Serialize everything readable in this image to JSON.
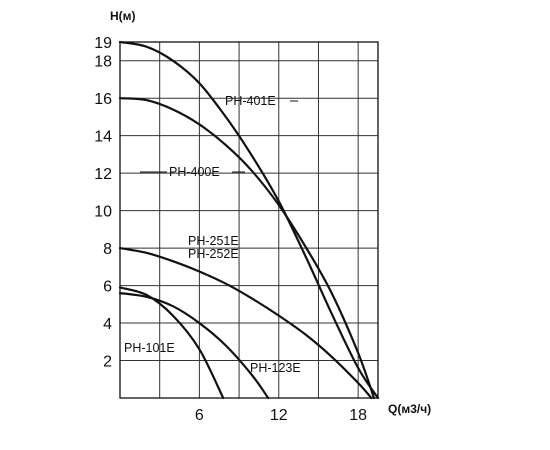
{
  "chart_data": {
    "type": "line",
    "title": "",
    "xlabel": "Q(м3/ч)",
    "ylabel": "H(м)",
    "xlim": [
      0,
      19.5
    ],
    "ylim": [
      0,
      19
    ],
    "x_ticks": [
      6,
      12,
      18
    ],
    "y_ticks": [
      2,
      4,
      6,
      8,
      10,
      12,
      14,
      16,
      18,
      19
    ],
    "grid": true,
    "legend": "none",
    "series": [
      {
        "name": "PH-401E",
        "x": [
          0,
          2,
          4,
          6,
          8,
          10,
          12,
          14,
          16,
          18,
          19.5
        ],
        "y": [
          19,
          18.75,
          18.0,
          16.8,
          15.0,
          12.9,
          10.5,
          7.6,
          4.5,
          1.6,
          0
        ]
      },
      {
        "name": "PH-400E",
        "x": [
          0,
          2,
          4,
          6,
          8,
          10,
          12,
          14,
          16,
          18,
          19.2
        ],
        "y": [
          16,
          15.9,
          15.4,
          14.6,
          13.5,
          12.1,
          10.3,
          8.1,
          5.6,
          2.4,
          0
        ]
      },
      {
        "name": "PH-251E PH-252E",
        "x": [
          0,
          2,
          4,
          6,
          8,
          10,
          12,
          14,
          16,
          18,
          19
        ],
        "y": [
          8,
          7.75,
          7.3,
          6.75,
          6.1,
          5.3,
          4.4,
          3.4,
          2.2,
          0.8,
          0
        ]
      },
      {
        "name": "PH-123E",
        "x": [
          0,
          2,
          4,
          6,
          8,
          10,
          11.2
        ],
        "y": [
          5.6,
          5.4,
          4.9,
          4.0,
          2.8,
          1.2,
          0
        ]
      },
      {
        "name": "PH-101E",
        "x": [
          0,
          2,
          4,
          6,
          7.8
        ],
        "y": [
          5.9,
          5.5,
          4.4,
          2.6,
          0
        ]
      }
    ],
    "curve_labels": [
      "PH-401E",
      "PH-400E",
      "PH-251E",
      "PH-252E",
      "PH-123E",
      "PH-101E"
    ]
  }
}
